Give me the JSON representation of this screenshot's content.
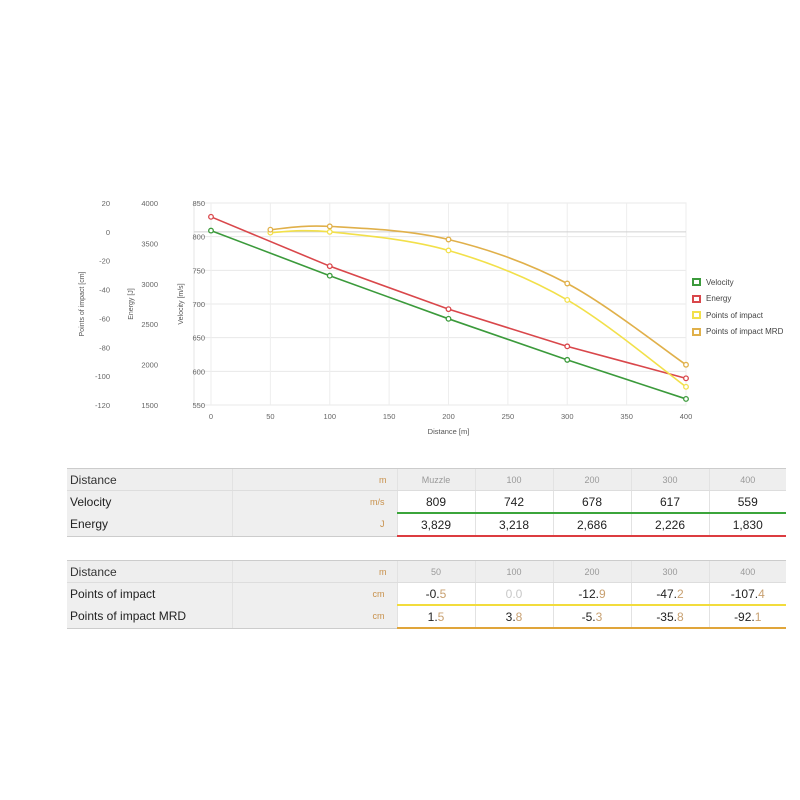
{
  "chart_data": {
    "type": "line",
    "xlabel": "Distance [m]",
    "x_ticks": [
      0,
      50,
      100,
      150,
      200,
      250,
      300,
      350,
      400
    ],
    "xlim": [
      0,
      400
    ],
    "axes": [
      {
        "id": "poi",
        "label": "Points of impact [cm]",
        "ticks": [
          20,
          0,
          -20,
          -40,
          -60,
          -80,
          -100,
          -120
        ],
        "range": [
          -120,
          20
        ]
      },
      {
        "id": "energy",
        "label": "Energy [J]",
        "ticks": [
          4000,
          3500,
          3000,
          2500,
          2000,
          1500
        ],
        "range": [
          1500,
          4000
        ]
      },
      {
        "id": "velocity",
        "label": "Velocity [m/s]",
        "ticks": [
          850,
          800,
          750,
          700,
          650,
          600,
          550
        ],
        "range": [
          550,
          850
        ]
      }
    ],
    "series": [
      {
        "name": "Velocity",
        "axis": "velocity",
        "color": "#3b9a3b",
        "x": [
          0,
          100,
          200,
          300,
          400
        ],
        "values": [
          809,
          742,
          678,
          617,
          559
        ]
      },
      {
        "name": "Energy",
        "axis": "energy",
        "color": "#d9474b",
        "x": [
          0,
          100,
          200,
          300,
          400
        ],
        "values": [
          3829,
          3218,
          2686,
          2226,
          1830
        ]
      },
      {
        "name": "Points of impact",
        "axis": "poi",
        "color": "#f2e04a",
        "x": [
          50,
          100,
          200,
          300,
          400
        ],
        "values": [
          -0.5,
          0.0,
          -12.9,
          -47.2,
          -107.4
        ]
      },
      {
        "name": "Points of impact MRD",
        "axis": "poi",
        "color": "#e0b04a",
        "x": [
          50,
          100,
          200,
          300,
          400
        ],
        "values": [
          1.5,
          3.8,
          -5.3,
          -35.8,
          -92.1
        ]
      }
    ],
    "grid": true,
    "legend_position": "right"
  },
  "table1": {
    "header": {
      "label": "Distance",
      "unit": "m",
      "columns": [
        "Muzzle",
        "100",
        "200",
        "300",
        "400"
      ]
    },
    "rows": [
      {
        "label": "Velocity",
        "unit": "m/s",
        "color": "#3ba53b",
        "values": [
          [
            "809",
            ""
          ],
          [
            "742",
            ""
          ],
          [
            "678",
            ""
          ],
          [
            "617",
            ""
          ],
          [
            "559",
            ""
          ]
        ]
      },
      {
        "label": "Energy",
        "unit": "J",
        "color": "#dc3c40",
        "values": [
          [
            "3,829",
            ""
          ],
          [
            "3,218",
            ""
          ],
          [
            "2,686",
            ""
          ],
          [
            "2,226",
            ""
          ],
          [
            "1,830",
            ""
          ]
        ]
      }
    ]
  },
  "table2": {
    "header": {
      "label": "Distance",
      "unit": "m",
      "columns": [
        "50",
        "100",
        "200",
        "300",
        "400"
      ]
    },
    "rows": [
      {
        "label": "Points of impact",
        "unit": "cm",
        "color": "#f2dc3c",
        "values": [
          [
            "-0.",
            "5"
          ],
          [
            "0.0",
            ""
          ],
          [
            "-12.",
            "9"
          ],
          [
            "-47.",
            "2"
          ],
          [
            "-107.",
            "4"
          ]
        ]
      },
      {
        "label": "Points of impact MRD",
        "unit": "cm",
        "color": "#e0a53a",
        "values": [
          [
            "1.",
            "5"
          ],
          [
            "3.",
            "8"
          ],
          [
            "-5.",
            "3"
          ],
          [
            "-35.",
            "8"
          ],
          [
            "-92.",
            "1"
          ]
        ]
      }
    ]
  }
}
